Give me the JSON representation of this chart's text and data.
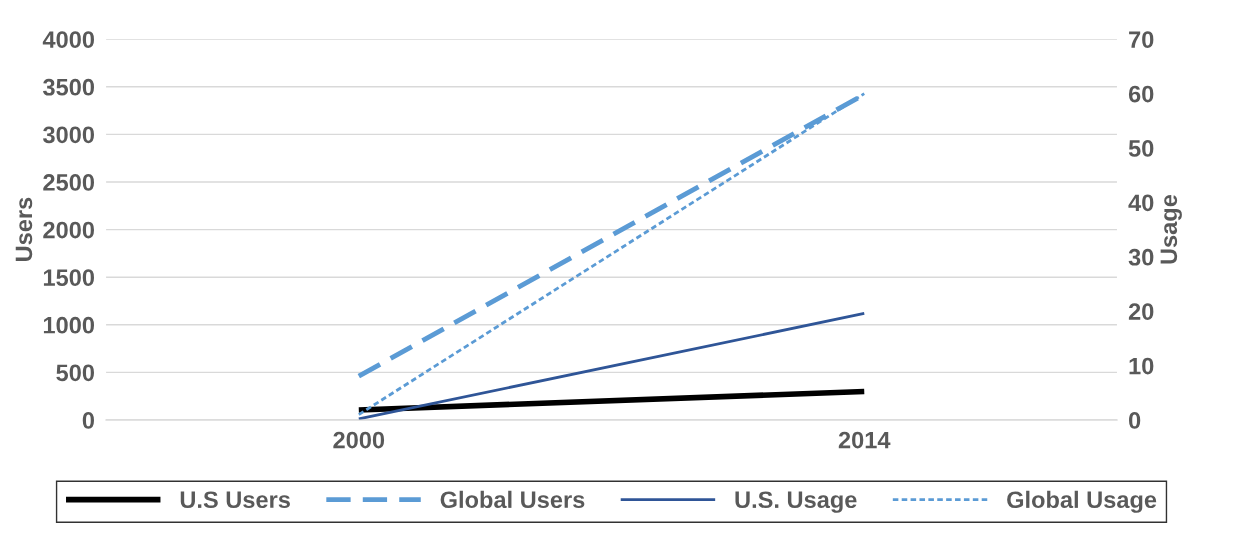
{
  "chart_data": {
    "type": "line",
    "categories": [
      "2000",
      "2014"
    ],
    "ylabel": "Users",
    "y2label": "Usage",
    "ylim": [
      0,
      4000
    ],
    "yticks": [
      0,
      500,
      1000,
      1500,
      2000,
      2500,
      3000,
      3500,
      4000
    ],
    "y2lim": [
      0,
      70
    ],
    "y2ticks": [
      0,
      10,
      20,
      30,
      40,
      50,
      60,
      70
    ],
    "grid": "y",
    "legend": "bottom",
    "marker": "none",
    "series": [
      {
        "name": "U.S Users",
        "color": "#000000",
        "values": [
          106,
          300
        ],
        "line_style": "solid"
      },
      {
        "name": "Global Users",
        "color": "#5b9bd5",
        "values": [
          460,
          3420
        ],
        "line_style": "dashed"
      },
      {
        "name": "U.S. Usage",
        "color": "#2f5597",
        "values": [
          0.2,
          19.6
        ],
        "axis": "y2",
        "line_style": "solid"
      },
      {
        "name": "Global Usage",
        "color": "#5b9bd5",
        "values": [
          1,
          60
        ],
        "axis": "y2",
        "line_style": "dotted"
      }
    ]
  }
}
